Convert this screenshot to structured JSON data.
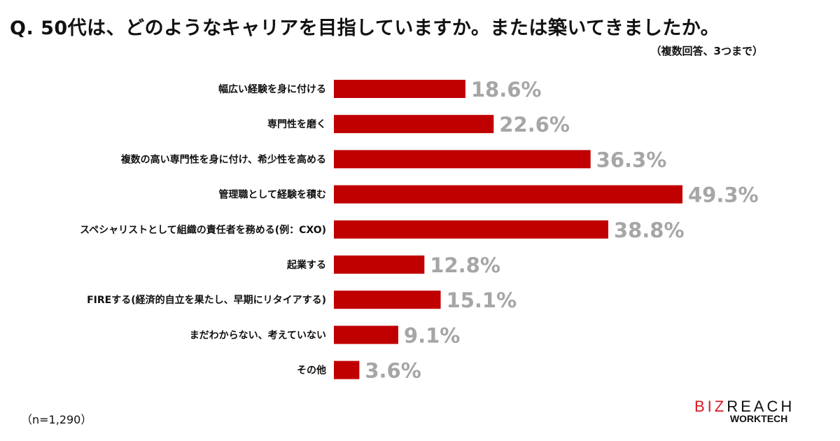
{
  "title": "Q. 50代は、どのようなキャリアを目指していますか。または築いてきましたか。",
  "subtitle": "（複数回答、3つまで）",
  "sample": "（n=1,290）",
  "logo": {
    "part1": "BIZ",
    "part2": "REACH",
    "sub": "WORKTECH",
    "brand_red": "#d71920"
  },
  "chart_data": {
    "type": "bar",
    "orientation": "horizontal",
    "categories": [
      "幅広い経験を身に付ける",
      "専門性を磨く",
      "複数の高い専門性を身に付け、希少性を高める",
      "管理職として経験を積む",
      "スペシャリストとして組織の責任者を務める(例：CXO)",
      "起業する",
      "FIREする(経済的自立を果たし、早期にリタイアする)",
      "まだわからない、考えていない",
      "その他"
    ],
    "values": [
      18.6,
      22.6,
      36.3,
      49.3,
      38.8,
      12.8,
      15.1,
      9.1,
      3.6
    ],
    "labels": [
      "18.6%",
      "22.6%",
      "36.3%",
      "49.3%",
      "38.8%",
      "12.8%",
      "15.1%",
      "9.1%",
      "3.6%"
    ],
    "unit": "%",
    "bar_color": "#c00000",
    "label_color": "#a6a6a6",
    "grid": false,
    "xlim": [
      0,
      50
    ]
  }
}
